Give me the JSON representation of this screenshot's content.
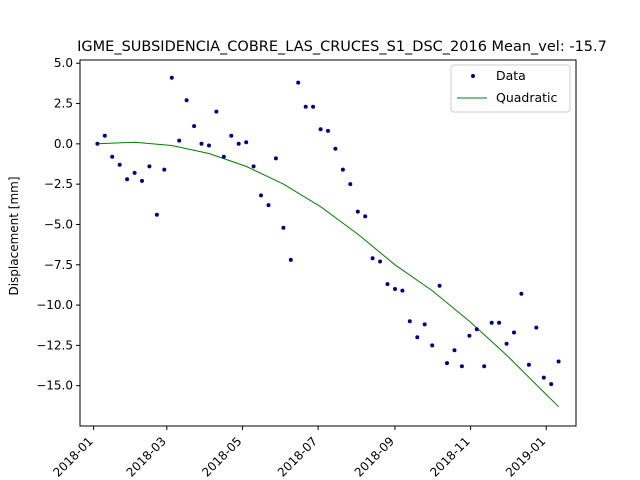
{
  "chart_data": {
    "type": "scatter",
    "title": "IGME_SUBSIDENCIA_COBRE_LAS_CRUCES_S1_DSC_2016     Mean_vel: -15.7",
    "xlabel": "",
    "ylabel": "Displacement [mm]",
    "x_ticks": [
      "2018-01",
      "2018-03",
      "2018-05",
      "2018-07",
      "2018-09",
      "2018-11",
      "2019-01"
    ],
    "y_ticks": [
      5.0,
      2.5,
      0.0,
      -2.5,
      -5.0,
      -7.5,
      -10.0,
      -12.5,
      -15.0
    ],
    "y_tick_labels": [
      "5.0",
      "2.5",
      "0.0",
      "−2.5",
      "−5.0",
      "−7.5",
      "−10.0",
      "−12.5",
      "−15.0"
    ],
    "xlim": [
      "2017-12-21",
      "2019-01-25"
    ],
    "ylim": [
      -17.5,
      5.2
    ],
    "grid": false,
    "legend_position": "upper-right",
    "colors": {
      "data": "#000080",
      "fit": "#008000",
      "axes": "#000000"
    },
    "series": [
      {
        "name": "Data",
        "style": "points",
        "x": [
          "2018-01-04",
          "2018-01-10",
          "2018-01-16",
          "2018-01-22",
          "2018-01-28",
          "2018-02-03",
          "2018-02-09",
          "2018-02-15",
          "2018-02-21",
          "2018-02-27",
          "2018-03-05",
          "2018-03-11",
          "2018-03-17",
          "2018-03-23",
          "2018-03-29",
          "2018-04-04",
          "2018-04-10",
          "2018-04-16",
          "2018-04-22",
          "2018-04-28",
          "2018-05-04",
          "2018-05-10",
          "2018-05-16",
          "2018-05-22",
          "2018-05-28",
          "2018-06-03",
          "2018-06-09",
          "2018-06-15",
          "2018-06-21",
          "2018-06-27",
          "2018-07-03",
          "2018-07-09",
          "2018-07-15",
          "2018-07-21",
          "2018-07-27",
          "2018-08-02",
          "2018-08-08",
          "2018-08-14",
          "2018-08-20",
          "2018-08-26",
          "2018-09-01",
          "2018-09-07",
          "2018-09-13",
          "2018-09-19",
          "2018-09-25",
          "2018-10-01",
          "2018-10-07",
          "2018-10-13",
          "2018-10-19",
          "2018-10-25",
          "2018-10-31",
          "2018-11-06",
          "2018-11-12",
          "2018-11-18",
          "2018-11-24",
          "2018-11-30",
          "2018-12-06",
          "2018-12-12",
          "2018-12-18",
          "2018-12-24",
          "2018-12-30",
          "2019-01-05",
          "2019-01-11"
        ],
        "y": [
          0.0,
          0.5,
          -0.8,
          -1.3,
          -2.2,
          -1.8,
          -2.3,
          -1.4,
          -4.4,
          -1.6,
          4.1,
          0.2,
          2.7,
          1.1,
          0.0,
          -0.1,
          2.0,
          -0.8,
          0.5,
          0.0,
          0.1,
          -1.4,
          -3.2,
          -3.8,
          -0.9,
          -5.2,
          -7.2,
          3.8,
          2.3,
          2.3,
          0.9,
          0.8,
          -0.3,
          -1.6,
          -2.5,
          -4.2,
          -4.5,
          -7.1,
          -7.3,
          -8.7,
          -9.0,
          -9.1,
          -11.0,
          -12.0,
          -11.2,
          -12.5,
          -8.8,
          -13.6,
          -12.8,
          -13.8,
          -11.9,
          -11.5,
          -13.8,
          -11.1,
          -11.1,
          -12.4,
          -11.7,
          -9.3,
          -13.7,
          -11.4,
          -14.5,
          -14.9,
          -13.5
        ]
      },
      {
        "name": "Quadratic",
        "style": "line",
        "x": [
          "2018-01-04",
          "2018-02-03",
          "2018-03-05",
          "2018-04-04",
          "2018-05-04",
          "2018-06-03",
          "2018-07-03",
          "2018-08-02",
          "2018-09-01",
          "2018-10-01",
          "2018-10-31",
          "2018-11-30",
          "2018-12-30",
          "2019-01-11"
        ],
        "y": [
          0.0,
          0.1,
          -0.1,
          -0.6,
          -1.4,
          -2.5,
          -3.9,
          -5.6,
          -7.5,
          -9.1,
          -11.0,
          -13.1,
          -15.4,
          -16.3
        ]
      }
    ]
  }
}
